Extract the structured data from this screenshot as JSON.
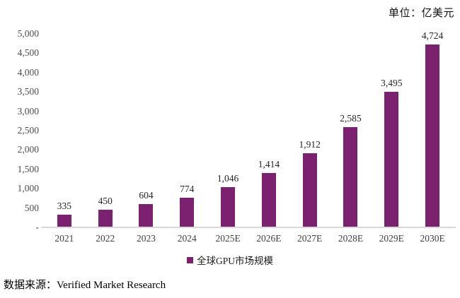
{
  "page": {
    "unit_label": "单位：亿美元",
    "source_label": "数据来源：Verified Market Research"
  },
  "legend": {
    "label": "全球GPU市场规模"
  },
  "colors": {
    "bar": "#7c2170",
    "axis_line": "#d9d9d9",
    "tick_text": "#4d4d4d"
  },
  "chart_data": {
    "type": "bar",
    "title": "",
    "unit": "亿美元",
    "categories": [
      "2021",
      "2022",
      "2023",
      "2024",
      "2025E",
      "2026E",
      "2027E",
      "2028E",
      "2029E",
      "2030E"
    ],
    "values": [
      335,
      450,
      604,
      774,
      1046,
      1414,
      1912,
      2585,
      3495,
      4724
    ],
    "values_formatted": [
      "335",
      "450",
      "604",
      "774",
      "1,046",
      "1,414",
      "1,912",
      "2,585",
      "3,495",
      "4,724"
    ],
    "series_name": "全球GPU市场规模",
    "xlabel": "",
    "ylabel": "",
    "ylim": [
      0,
      5000
    ],
    "y_ticks": [
      "5,000",
      "4,500",
      "4,000",
      "3,500",
      "3,000",
      "2,500",
      "2,000",
      "1,500",
      "1,000",
      "500",
      "-"
    ],
    "grid": false,
    "legend_position": "bottom"
  }
}
